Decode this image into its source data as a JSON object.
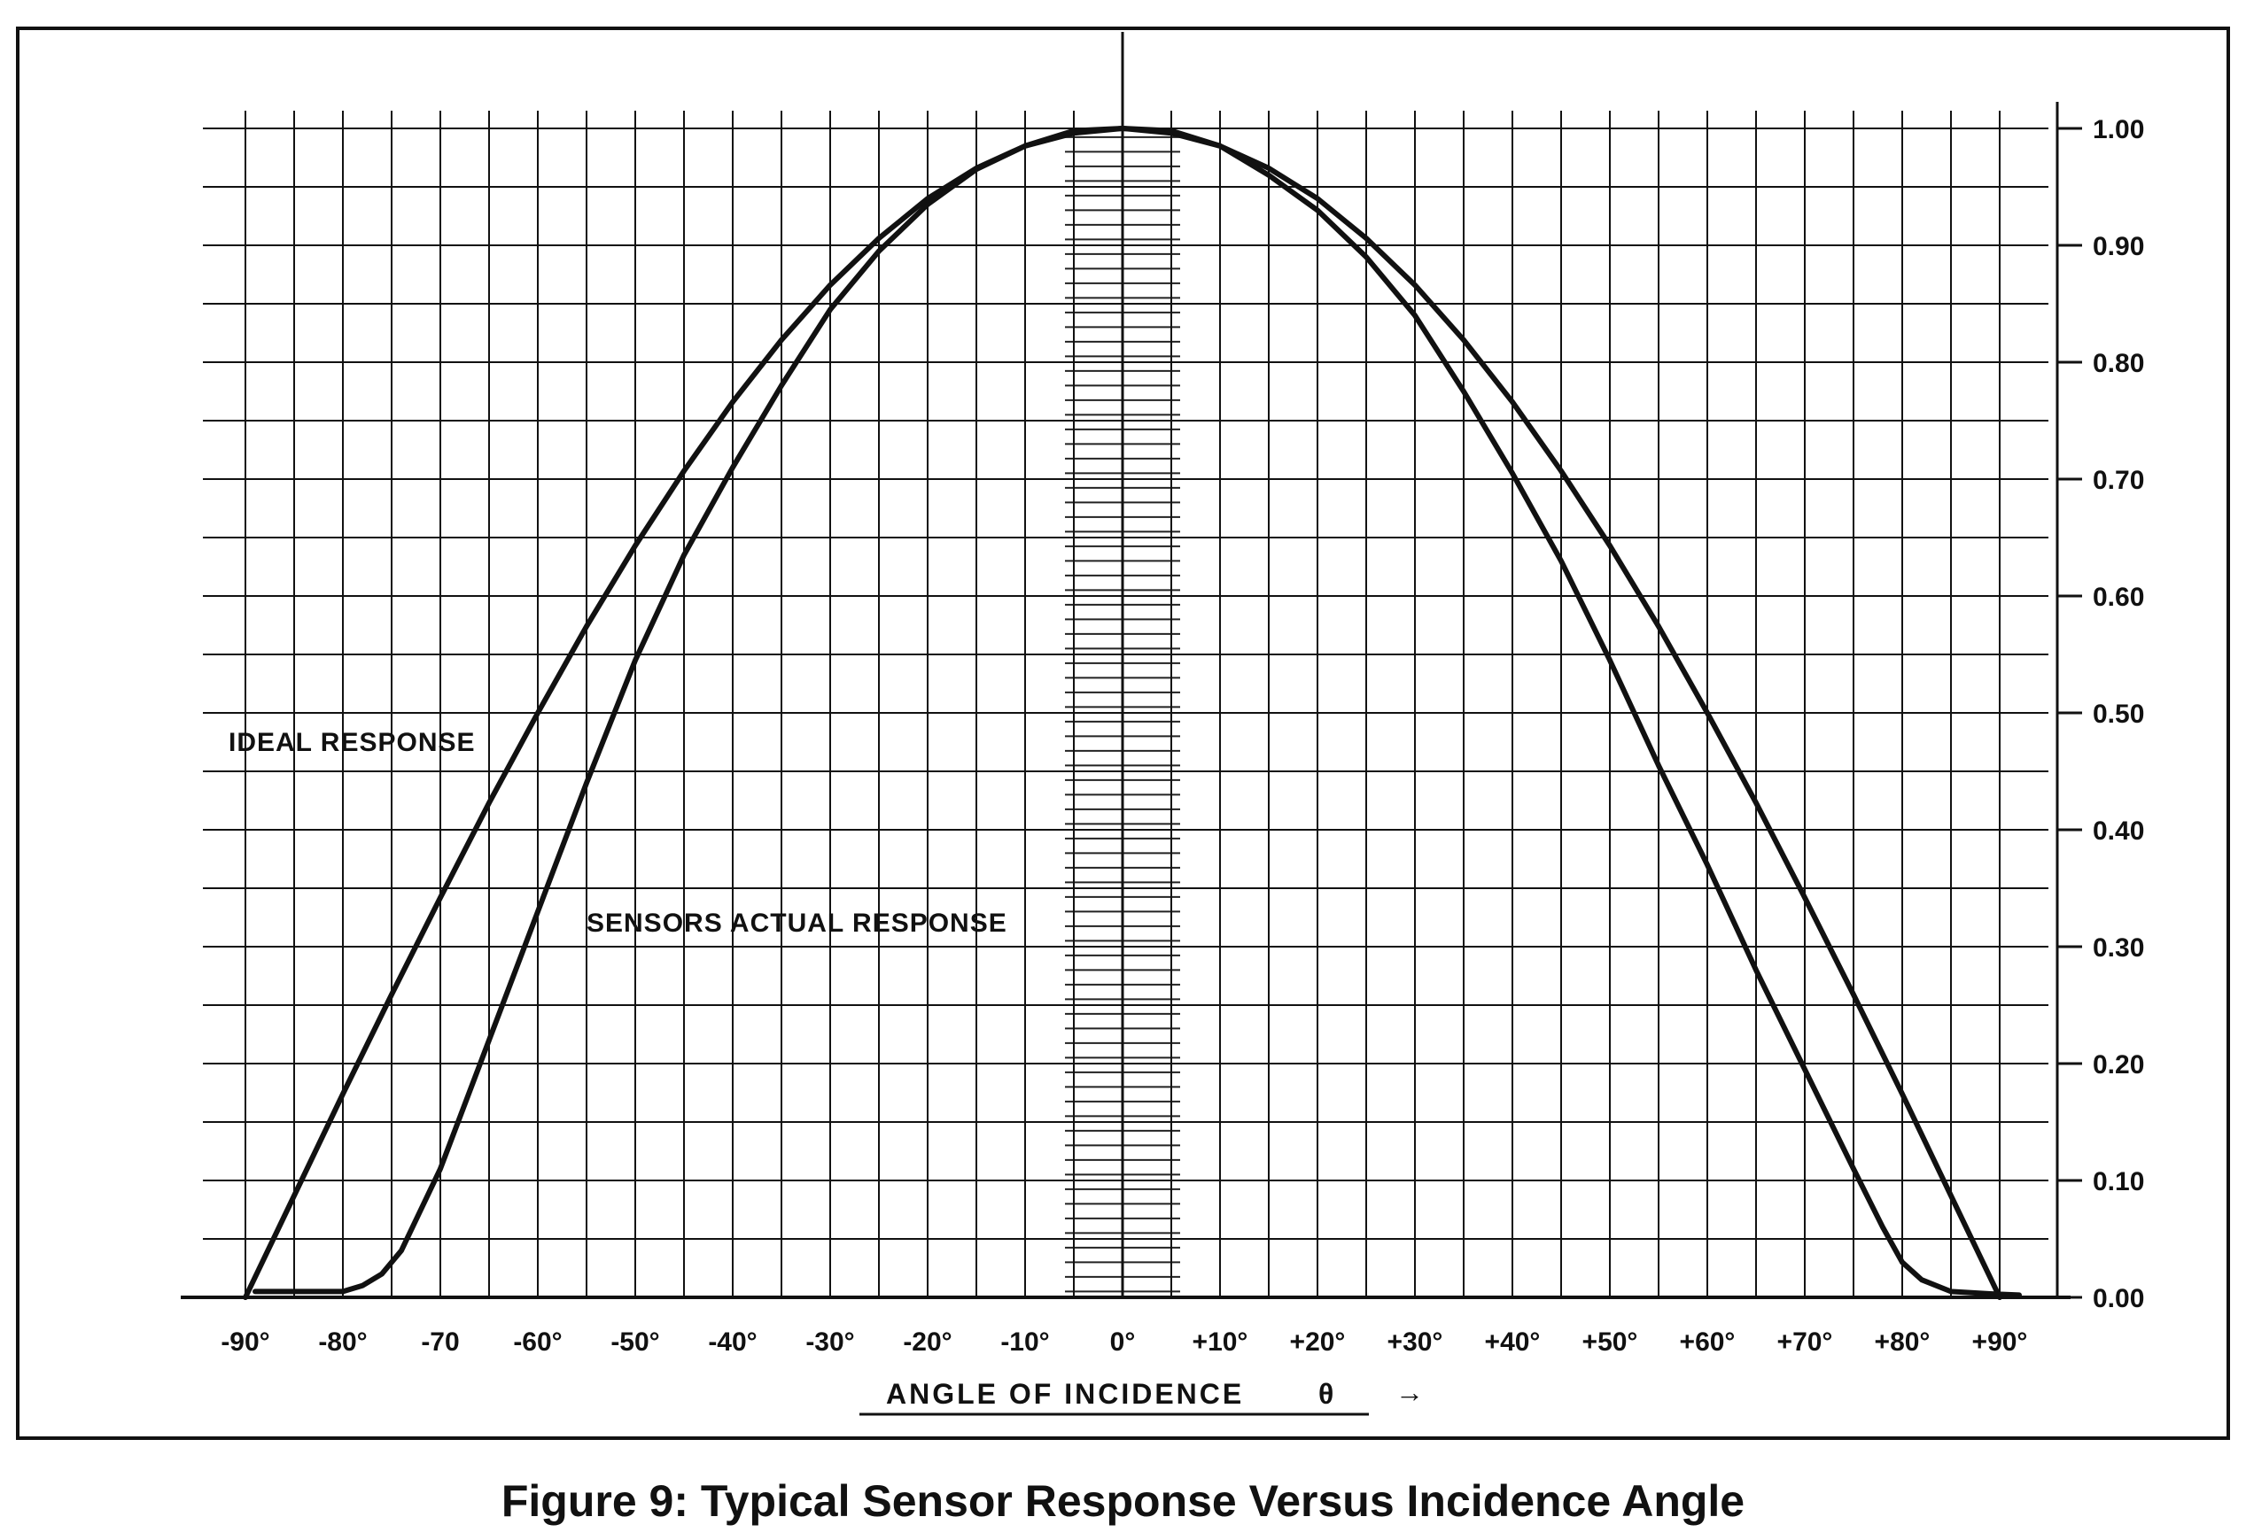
{
  "caption": "Figure 9: Typical Sensor Response Versus Incidence Angle",
  "chart_data": {
    "type": "line",
    "xlabel": "ANGLE OF INCIDENCE",
    "xlabel_symbol": "θ",
    "xlabel_arrow": "→",
    "xlim": [
      -90,
      90
    ],
    "ylim": [
      0,
      1
    ],
    "grid": true,
    "x_ticks": [
      -90,
      -80,
      -70,
      -60,
      -50,
      -40,
      -30,
      -20,
      -10,
      0,
      10,
      20,
      30,
      40,
      50,
      60,
      70,
      80,
      90
    ],
    "x_tick_labels": [
      "-90°",
      "-80°",
      "-70",
      "-60°",
      "-50°",
      "-40°",
      "-30°",
      "-20°",
      "-10°",
      "0°",
      "+10°",
      "+20°",
      "+30°",
      "+40°",
      "+50°",
      "+60°",
      "+70°",
      "+80°",
      "+90°"
    ],
    "y_ticks": [
      0,
      0.1,
      0.2,
      0.3,
      0.4,
      0.5,
      0.6,
      0.7,
      0.8,
      0.9,
      1.0
    ],
    "y_tick_labels": [
      "0.00",
      "0.10",
      "0.20",
      "0.30",
      "0.40",
      "0.50",
      "0.60",
      "0.70",
      "0.80",
      "0.90",
      "1.00"
    ],
    "series": [
      {
        "name": "IDEAL RESPONSE",
        "x": [
          -90,
          -85,
          -80,
          -75,
          -70,
          -65,
          -60,
          -55,
          -50,
          -45,
          -40,
          -35,
          -30,
          -25,
          -20,
          -15,
          -10,
          -5,
          0,
          5,
          10,
          15,
          20,
          25,
          30,
          35,
          40,
          45,
          50,
          55,
          60,
          65,
          70,
          75,
          80,
          85,
          90
        ],
        "y": [
          0.0,
          0.087,
          0.174,
          0.259,
          0.342,
          0.423,
          0.5,
          0.574,
          0.643,
          0.707,
          0.766,
          0.819,
          0.866,
          0.906,
          0.94,
          0.966,
          0.985,
          0.996,
          1.0,
          0.996,
          0.985,
          0.966,
          0.94,
          0.906,
          0.866,
          0.819,
          0.766,
          0.707,
          0.643,
          0.574,
          0.5,
          0.423,
          0.342,
          0.259,
          0.174,
          0.087,
          0.0
        ]
      },
      {
        "name": "SENSORS ACTUAL RESPONSE",
        "x": [
          -89,
          -85,
          -80,
          -78,
          -76,
          -74,
          -72,
          -70,
          -65,
          -60,
          -55,
          -50,
          -45,
          -40,
          -35,
          -30,
          -25,
          -20,
          -15,
          -10,
          -5,
          0,
          5,
          10,
          15,
          20,
          25,
          30,
          35,
          40,
          45,
          50,
          55,
          60,
          65,
          70,
          75,
          78,
          80,
          82,
          85,
          89,
          92
        ],
        "y": [
          0.005,
          0.005,
          0.005,
          0.01,
          0.02,
          0.04,
          0.075,
          0.11,
          0.22,
          0.33,
          0.44,
          0.545,
          0.635,
          0.71,
          0.78,
          0.845,
          0.895,
          0.935,
          0.965,
          0.985,
          0.998,
          1.0,
          0.998,
          0.985,
          0.96,
          0.93,
          0.89,
          0.84,
          0.775,
          0.705,
          0.63,
          0.545,
          0.455,
          0.37,
          0.28,
          0.195,
          0.11,
          0.06,
          0.03,
          0.015,
          0.005,
          0.003,
          0.002
        ]
      }
    ],
    "annotations": [
      {
        "text": "IDEAL RESPONSE",
        "series": 0
      },
      {
        "text": "SENSORS ACTUAL RESPONSE",
        "series": 1
      }
    ],
    "center_band": {
      "x_range": [
        -5,
        5
      ],
      "hatch": "horizontal"
    }
  }
}
